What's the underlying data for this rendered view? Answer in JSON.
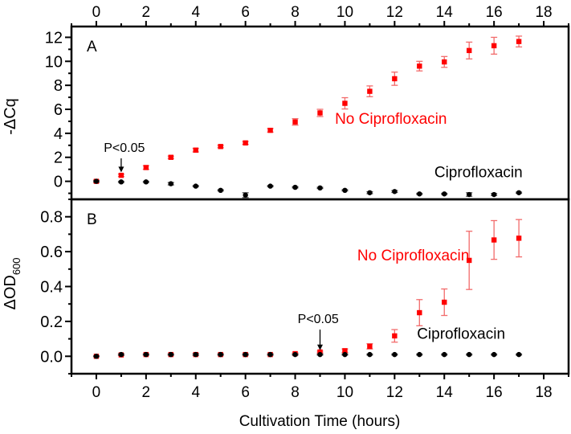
{
  "chart_data": [
    {
      "panel": "A",
      "type": "scatter",
      "panel_label": "A",
      "ylabel": "-ΔCq",
      "xlim": [
        -1,
        19
      ],
      "ylim": [
        -1.5,
        12.9
      ],
      "yticks": [
        0,
        2,
        4,
        6,
        8,
        10,
        12
      ],
      "ytick_labels": [
        "0",
        "2",
        "4",
        "6",
        "8",
        "10",
        "12"
      ],
      "xticks": [
        0,
        2,
        4,
        6,
        8,
        10,
        12,
        14,
        16,
        18
      ],
      "xtick_labels": [
        "0",
        "2",
        "4",
        "6",
        "8",
        "10",
        "12",
        "14",
        "16",
        "18"
      ],
      "xtick_position": "top",
      "grid": false,
      "x": [
        0,
        1,
        2,
        3,
        4,
        5,
        6,
        7,
        8,
        9,
        10,
        11,
        12,
        13,
        14,
        15,
        16,
        17
      ],
      "series": [
        {
          "name": "No Ciprofloxacin",
          "color": "#ff0000",
          "marker": "square",
          "values": [
            0.0,
            0.5,
            1.15,
            2.0,
            2.6,
            2.9,
            3.2,
            4.25,
            4.95,
            5.7,
            6.5,
            7.5,
            8.55,
            9.6,
            9.95,
            10.9,
            11.3,
            11.65
          ],
          "errors": [
            0.1,
            0.1,
            0.15,
            0.1,
            0.15,
            0.1,
            0.12,
            0.15,
            0.27,
            0.3,
            0.47,
            0.45,
            0.55,
            0.4,
            0.45,
            0.7,
            0.7,
            0.45
          ]
        },
        {
          "name": "Ciprofloxacin",
          "color": "#000000",
          "marker": "circle",
          "values": [
            0.0,
            -0.05,
            -0.05,
            -0.2,
            -0.4,
            -0.75,
            -1.15,
            -0.4,
            -0.5,
            -0.55,
            -0.75,
            -0.95,
            -0.85,
            -1.05,
            -1.05,
            -1.1,
            -1.1,
            -0.95
          ],
          "errors": [
            0.05,
            0.05,
            0.05,
            0.1,
            0.05,
            0.05,
            0.2,
            0.05,
            0.05,
            0.05,
            0.05,
            0.08,
            0.08,
            0.05,
            0.05,
            0.15,
            0.08,
            0.05
          ]
        }
      ],
      "annotations": [
        {
          "text": "No Ciprofloxacin",
          "color": "#ff0000",
          "x": 9.6,
          "y": 4.8
        },
        {
          "text": "Ciprofloxacin",
          "color": "#000000",
          "x": 13.6,
          "y": 0.35
        },
        {
          "text": "P<0.05",
          "color": "#000000",
          "x": 0.3,
          "y": 2.45,
          "arrow_to": [
            1,
            0.75
          ]
        }
      ]
    },
    {
      "panel": "B",
      "type": "scatter",
      "panel_label": "B",
      "ylabel": "ΔOD",
      "ylabel_subscript": "600",
      "xlabel": "Cultivation Time (hours)",
      "xlim": [
        -1,
        19
      ],
      "ylim": [
        -0.1,
        0.9
      ],
      "yticks": [
        0.0,
        0.2,
        0.4,
        0.6,
        0.8
      ],
      "ytick_labels": [
        "0.0",
        "0.2",
        "0.4",
        "0.6",
        "0.8"
      ],
      "xticks": [
        0,
        2,
        4,
        6,
        8,
        10,
        12,
        14,
        16,
        18
      ],
      "xtick_labels": [
        "0",
        "2",
        "4",
        "6",
        "8",
        "10",
        "12",
        "14",
        "16",
        "18"
      ],
      "xtick_position": "bottom",
      "grid": false,
      "x": [
        0,
        1,
        2,
        3,
        4,
        5,
        6,
        7,
        8,
        9,
        10,
        11,
        12,
        13,
        14,
        15,
        16,
        17
      ],
      "series": [
        {
          "name": "No Ciprofloxacin",
          "color": "#ff0000",
          "marker": "square",
          "values": [
            0.0,
            0.008,
            0.01,
            0.01,
            0.01,
            0.01,
            0.01,
            0.01,
            0.015,
            0.025,
            0.032,
            0.057,
            0.117,
            0.25,
            0.31,
            0.55,
            0.667,
            0.677
          ],
          "errors": [
            0.003,
            0.004,
            0.004,
            0.004,
            0.004,
            0.004,
            0.004,
            0.004,
            0.004,
            0.005,
            0.01,
            0.015,
            0.036,
            0.075,
            0.076,
            0.167,
            0.111,
            0.107
          ]
        },
        {
          "name": "Ciprofloxacin",
          "color": "#000000",
          "marker": "circle",
          "values": [
            0.0,
            0.01,
            0.01,
            0.01,
            0.01,
            0.01,
            0.01,
            0.01,
            0.01,
            0.01,
            0.01,
            0.01,
            0.01,
            0.01,
            0.01,
            0.01,
            0.01,
            0.01
          ],
          "errors": [
            0.002,
            0.004,
            0.003,
            0.003,
            0.005,
            0.003,
            0.003,
            0.003,
            0.003,
            0.003,
            0.003,
            0.003,
            0.003,
            0.003,
            0.003,
            0.003,
            0.003,
            0.003
          ]
        }
      ],
      "annotations": [
        {
          "text": "No Ciprofloxacin",
          "color": "#ff0000",
          "x": 10.5,
          "y": 0.55
        },
        {
          "text": "Ciprofloxacin",
          "color": "#000000",
          "x": 12.9,
          "y": 0.1
        },
        {
          "text": "P<0.05",
          "color": "#000000",
          "x": 8.1,
          "y": 0.19,
          "arrow_to": [
            9,
            0.035
          ]
        }
      ]
    }
  ]
}
